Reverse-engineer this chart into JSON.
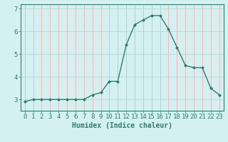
{
  "x": [
    0,
    1,
    2,
    3,
    4,
    5,
    6,
    7,
    8,
    9,
    10,
    11,
    12,
    13,
    14,
    15,
    16,
    17,
    18,
    19,
    20,
    21,
    22,
    23
  ],
  "y": [
    2.9,
    3.0,
    3.0,
    3.0,
    3.0,
    3.0,
    3.0,
    3.0,
    3.2,
    3.3,
    3.8,
    3.8,
    5.4,
    6.3,
    6.5,
    6.7,
    6.7,
    6.1,
    5.3,
    4.5,
    4.4,
    4.4,
    3.5,
    3.2
  ],
  "line_color": "#2e7d6e",
  "marker": "D",
  "marker_size": 2.0,
  "bg_color": "#d4f0f0",
  "xlabel": "Humidex (Indice chaleur)",
  "xlim": [
    -0.5,
    23.5
  ],
  "ylim": [
    2.5,
    7.2
  ],
  "yticks": [
    3,
    4,
    5,
    6,
    7
  ],
  "xticks": [
    0,
    1,
    2,
    3,
    4,
    5,
    6,
    7,
    8,
    9,
    10,
    11,
    12,
    13,
    14,
    15,
    16,
    17,
    18,
    19,
    20,
    21,
    22,
    23
  ],
  "tick_fontsize": 6.5,
  "label_fontsize": 7.0,
  "line_width": 1.0,
  "grid_x_color": "#f0b0b0",
  "grid_y_color": "#b8d8d8"
}
